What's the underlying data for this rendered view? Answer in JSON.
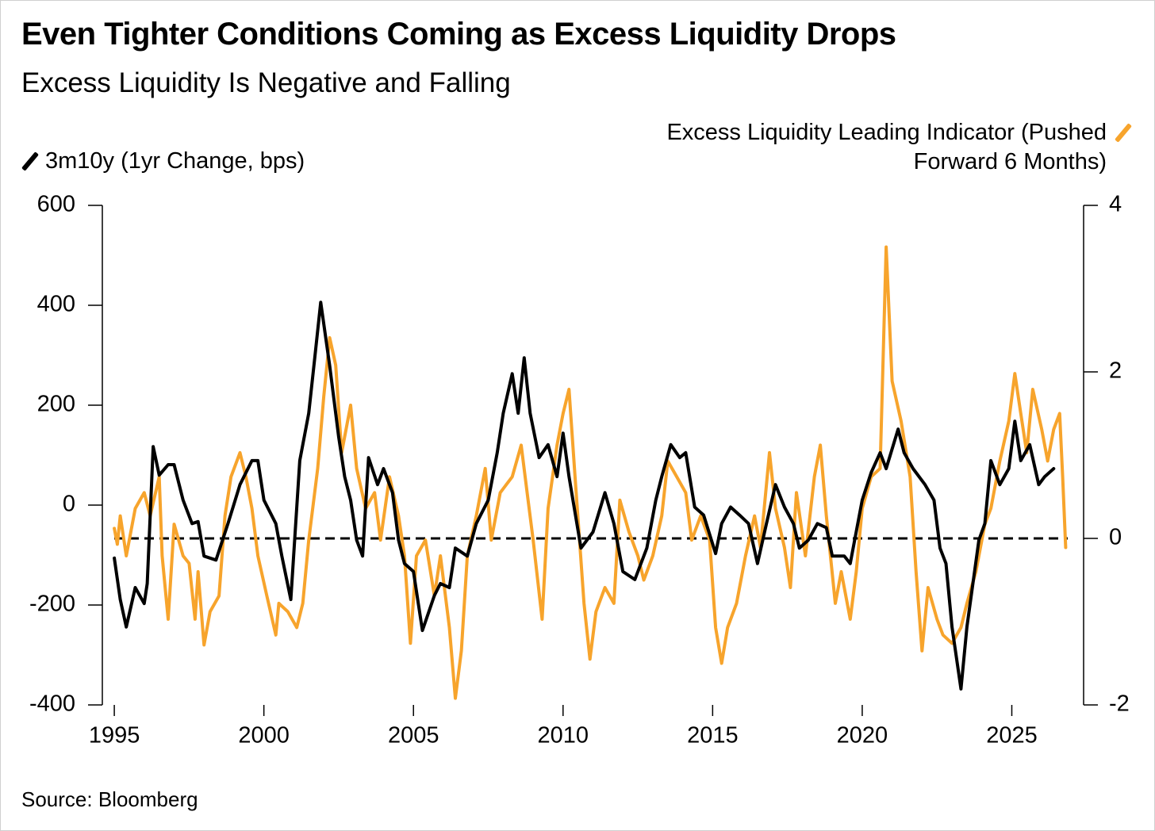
{
  "chart_data": {
    "type": "line",
    "title": "Even Tighter Conditions Coming as Excess Liquidity Drops",
    "subtitle": "Excess Liquidity Is Negative and Falling",
    "source": "Source: Bloomberg",
    "xlim": [
      1994.6,
      2027.4
    ],
    "xticks": [
      1995,
      2000,
      2005,
      2010,
      2015,
      2020,
      2025
    ],
    "ylim": [
      -400,
      600
    ],
    "yticks": [
      -400,
      -200,
      0,
      200,
      400,
      600
    ],
    "y2lim": [
      -2,
      4
    ],
    "y2ticks": [
      -2,
      0,
      2,
      4
    ],
    "y2_reference_line": 0,
    "series": [
      {
        "name": "3m10y (1yr Change, bps)",
        "color": "#000000",
        "axis": "y",
        "x": [
          1995.0,
          1995.2,
          1995.4,
          1995.7,
          1996.0,
          1996.1,
          1996.3,
          1996.5,
          1996.8,
          1997.0,
          1997.3,
          1997.6,
          1997.8,
          1998.0,
          1998.4,
          1998.8,
          1999.2,
          1999.6,
          1999.8,
          2000.0,
          2000.4,
          2000.6,
          2000.9,
          2001.2,
          2001.5,
          2001.7,
          2001.9,
          2002.2,
          2002.5,
          2002.7,
          2002.9,
          2003.1,
          2003.3,
          2003.5,
          2003.8,
          2004.0,
          2004.3,
          2004.5,
          2004.7,
          2005.0,
          2005.3,
          2005.7,
          2005.9,
          2006.2,
          2006.4,
          2006.8,
          2007.1,
          2007.5,
          2007.8,
          2008.0,
          2008.3,
          2008.5,
          2008.7,
          2008.9,
          2009.2,
          2009.5,
          2009.8,
          2010.0,
          2010.2,
          2010.6,
          2011.0,
          2011.4,
          2011.7,
          2012.0,
          2012.4,
          2012.8,
          2013.1,
          2013.3,
          2013.6,
          2013.9,
          2014.1,
          2014.4,
          2014.7,
          2015.1,
          2015.3,
          2015.6,
          2015.9,
          2016.2,
          2016.5,
          2016.8,
          2017.1,
          2017.4,
          2017.7,
          2017.9,
          2018.2,
          2018.5,
          2018.8,
          2019.0,
          2019.4,
          2019.6,
          2020.0,
          2020.3,
          2020.6,
          2020.8,
          2021.2,
          2021.4,
          2021.7,
          2022.1,
          2022.4,
          2022.6,
          2022.8,
          2023.0,
          2023.3,
          2023.5,
          2023.9,
          2024.1,
          2024.3,
          2024.6,
          2024.9,
          2025.1,
          2025.3,
          2025.6,
          2025.9,
          2026.1,
          2026.4
        ],
        "values": [
          -106,
          -189,
          -244,
          -165,
          -197,
          -157,
          117,
          60,
          81,
          81,
          10,
          -37,
          -33,
          -102,
          -110,
          -37,
          41,
          89,
          89,
          10,
          -37,
          -102,
          -189,
          89,
          184,
          295,
          406,
          279,
          137,
          57,
          10,
          -70,
          -102,
          95,
          41,
          73,
          25,
          -70,
          -117,
          -133,
          -251,
          -181,
          -157,
          -165,
          -86,
          -102,
          -37,
          10,
          105,
          184,
          263,
          184,
          295,
          184,
          95,
          121,
          57,
          144,
          57,
          -86,
          -54,
          25,
          -37,
          -133,
          -149,
          -86,
          10,
          57,
          121,
          95,
          105,
          -4,
          -20,
          -97,
          -37,
          -4,
          -20,
          -37,
          -117,
          -37,
          41,
          -4,
          -37,
          -86,
          -70,
          -37,
          -45,
          -102,
          -102,
          -117,
          10,
          65,
          105,
          73,
          152,
          105,
          73,
          41,
          10,
          -86,
          -117,
          -244,
          -368,
          -244,
          -70,
          -37,
          89,
          41,
          73,
          168,
          89,
          121,
          41,
          57,
          73
        ]
      },
      {
        "name": "Excess Liquidity Leading Indicator (Pushed Forward 6 Months)",
        "color": "#f7a42c",
        "axis": "y2",
        "x": [
          1995.0,
          1995.1,
          1995.2,
          1995.4,
          1995.7,
          1996.0,
          1996.2,
          1996.5,
          1996.6,
          1996.8,
          1997.0,
          1997.3,
          1997.5,
          1997.7,
          1997.8,
          1998.0,
          1998.2,
          1998.5,
          1998.7,
          1998.9,
          1999.2,
          1999.4,
          1999.6,
          1999.8,
          2000.1,
          2000.4,
          2000.5,
          2000.8,
          2001.1,
          2001.3,
          2001.5,
          2001.8,
          2002.0,
          2002.2,
          2002.4,
          2002.6,
          2002.9,
          2003.1,
          2003.4,
          2003.7,
          2003.9,
          2004.2,
          2004.5,
          2004.7,
          2004.9,
          2005.1,
          2005.4,
          2005.7,
          2005.9,
          2006.2,
          2006.4,
          2006.6,
          2006.8,
          2007.1,
          2007.4,
          2007.6,
          2007.9,
          2008.3,
          2008.6,
          2008.8,
          2009.0,
          2009.3,
          2009.5,
          2009.8,
          2010.0,
          2010.2,
          2010.4,
          2010.7,
          2010.9,
          2011.1,
          2011.4,
          2011.7,
          2011.9,
          2012.2,
          2012.5,
          2012.7,
          2013.0,
          2013.3,
          2013.5,
          2013.8,
          2014.1,
          2014.3,
          2014.6,
          2014.9,
          2015.1,
          2015.3,
          2015.5,
          2015.8,
          2016.1,
          2016.4,
          2016.6,
          2016.9,
          2017.1,
          2017.4,
          2017.6,
          2017.8,
          2018.1,
          2018.4,
          2018.6,
          2018.8,
          2019.1,
          2019.3,
          2019.6,
          2019.8,
          2020.0,
          2020.3,
          2020.6,
          2020.8,
          2021.0,
          2021.3,
          2021.6,
          2021.8,
          2022.0,
          2022.2,
          2022.5,
          2022.7,
          2023.0,
          2023.3,
          2023.5,
          2023.8,
          2024.1,
          2024.3,
          2024.6,
          2024.9,
          2025.1,
          2025.3,
          2025.5,
          2025.7,
          2026.0,
          2026.2,
          2026.4,
          2026.6,
          2026.7,
          2026.8
        ],
        "values": [
          0.12,
          -0.07,
          0.27,
          -0.21,
          0.36,
          0.55,
          0.27,
          0.74,
          -0.21,
          -0.97,
          0.17,
          -0.21,
          -0.3,
          -0.97,
          -0.4,
          -1.28,
          -0.88,
          -0.69,
          0.27,
          0.74,
          1.03,
          0.74,
          0.36,
          -0.21,
          -0.69,
          -1.16,
          -0.78,
          -0.88,
          -1.07,
          -0.78,
          -0.02,
          0.84,
          1.7,
          2.41,
          2.08,
          1.03,
          1.6,
          0.84,
          0.36,
          0.55,
          -0.02,
          0.74,
          0.27,
          -0.21,
          -1.26,
          -0.21,
          -0.02,
          -0.69,
          -0.21,
          -1.07,
          -1.92,
          -1.35,
          -0.21,
          0.27,
          0.84,
          -0.02,
          0.55,
          0.74,
          1.12,
          0.55,
          -0.02,
          -0.97,
          0.36,
          1.12,
          1.5,
          1.79,
          0.74,
          -0.78,
          -1.45,
          -0.88,
          -0.59,
          -0.78,
          0.46,
          0.08,
          -0.21,
          -0.5,
          -0.21,
          0.27,
          0.93,
          0.74,
          0.55,
          -0.02,
          0.27,
          -0.02,
          -1.07,
          -1.5,
          -1.07,
          -0.78,
          -0.21,
          0.27,
          -0.11,
          1.03,
          0.36,
          -0.11,
          -0.59,
          0.55,
          -0.21,
          0.74,
          1.12,
          0.27,
          -0.78,
          -0.4,
          -0.97,
          -0.4,
          0.36,
          0.74,
          0.84,
          3.5,
          1.89,
          1.41,
          0.74,
          -0.4,
          -1.35,
          -0.59,
          -0.97,
          -1.16,
          -1.26,
          -1.07,
          -0.78,
          -0.4,
          0.17,
          0.36,
          0.93,
          1.41,
          1.98,
          1.5,
          1.03,
          1.79,
          1.31,
          0.93,
          1.31,
          1.5,
          0.74,
          -0.11
        ]
      }
    ]
  }
}
